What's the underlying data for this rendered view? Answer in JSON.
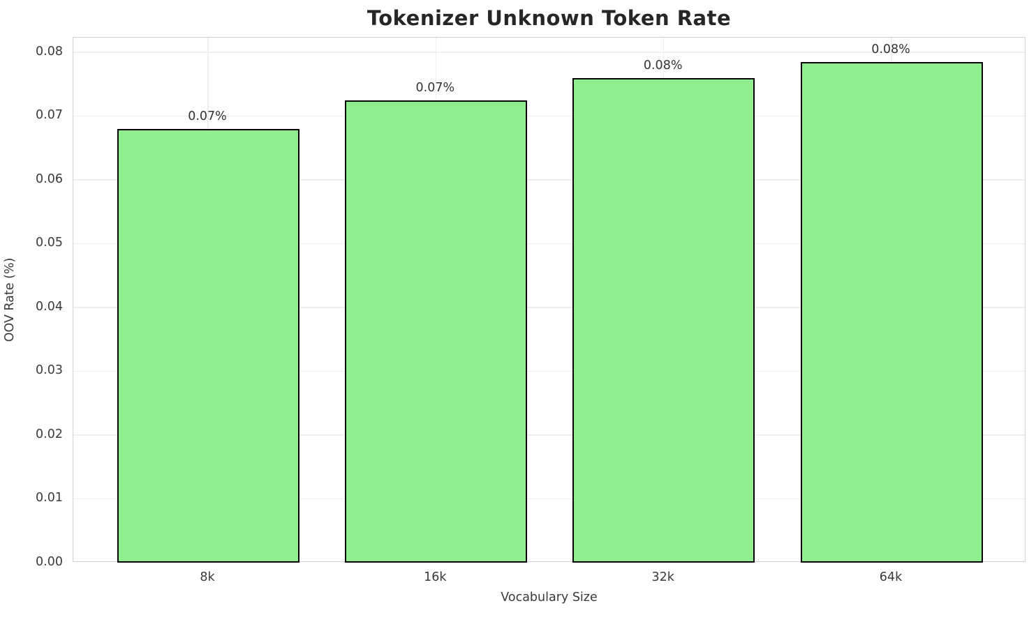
{
  "chart_data": {
    "type": "bar",
    "title": "Tokenizer Unknown Token Rate",
    "xlabel": "Vocabulary Size",
    "ylabel": "OOV Rate (%)",
    "categories": [
      "8k",
      "16k",
      "32k",
      "64k"
    ],
    "values": [
      0.068,
      0.0725,
      0.076,
      0.0785
    ],
    "bar_labels": [
      "0.07%",
      "0.07%",
      "0.08%",
      "0.08%"
    ],
    "ytick_labels": [
      "0.00",
      "0.01",
      "0.02",
      "0.03",
      "0.04",
      "0.05",
      "0.06",
      "0.07",
      "0.08"
    ],
    "ytick_values": [
      0,
      0.01,
      0.02,
      0.03,
      0.04,
      0.05,
      0.06,
      0.07,
      0.08
    ],
    "ylim": [
      0,
      0.0823
    ],
    "grid": true,
    "legend": null,
    "colors": {
      "bar_fill": "#90EE90",
      "bar_edge": "#000000",
      "grid": "#eeeeee",
      "spine": "#d2d2d2",
      "tick_text": "#3a3a3a",
      "title_text": "#262626",
      "background": "#ffffff"
    }
  }
}
